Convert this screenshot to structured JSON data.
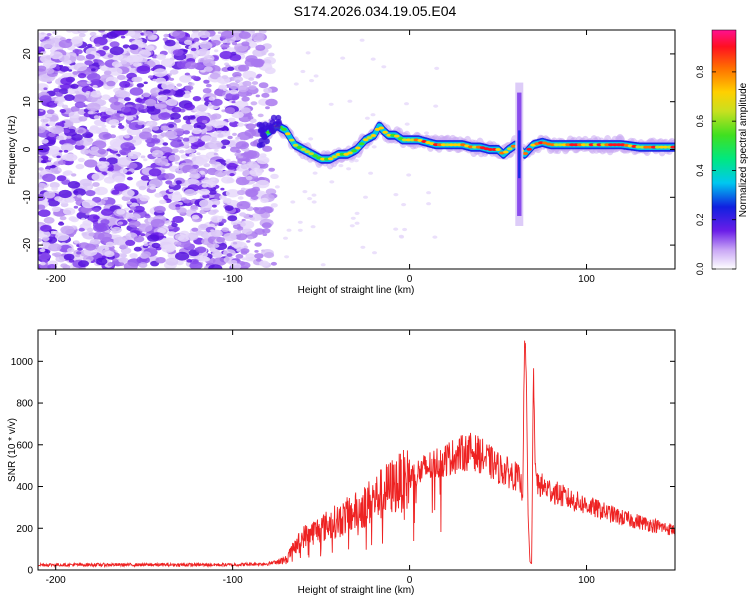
{
  "title": "S174.2026.034.19.05.E04",
  "colors": {
    "signal": "#ee2222",
    "ridge": "#cc1030",
    "noise_dark": "#6a1ee8",
    "noise_light": "#d9c6f7"
  },
  "chart_data": [
    {
      "type": "heatmap",
      "name": "spectrogram",
      "xlabel": "Height of straight line (km)",
      "ylabel": "Frequency (Hz)",
      "xlim": [
        -210,
        150
      ],
      "ylim": [
        -25,
        25
      ],
      "xticks": [
        -200,
        -100,
        0,
        100
      ],
      "yticks": [
        -20,
        -10,
        0,
        10,
        20
      ],
      "noise_region_x": [
        -210,
        -75
      ],
      "ridge": {
        "x": [
          -82,
          -75,
          -70,
          -65,
          -60,
          -55,
          -50,
          -45,
          -40,
          -35,
          -30,
          -25,
          -20,
          -17,
          -15,
          -12,
          -8,
          -4,
          0,
          5,
          10,
          15,
          20,
          25,
          30,
          35,
          40,
          45,
          50,
          53,
          56,
          60,
          65,
          70,
          75,
          80,
          85,
          90,
          95,
          100,
          110,
          120,
          130,
          140,
          150
        ],
        "y": [
          3,
          5,
          4,
          1,
          0,
          -1,
          -2,
          -2,
          -1,
          -1,
          0,
          2,
          3,
          5,
          4,
          3,
          3,
          2,
          2,
          2,
          1.5,
          1,
          1,
          1,
          1,
          0.5,
          0.5,
          0,
          0,
          -1,
          0,
          1,
          -1,
          1,
          1.5,
          1,
          1,
          1,
          1,
          1,
          1,
          1,
          0.5,
          0.5,
          0.5
        ]
      },
      "spike_x": 62,
      "spike_y_range": [
        -16,
        14
      ],
      "colorbar": {
        "label": "Normalized spectral amplitude",
        "ticks": [
          0.0,
          0.2,
          0.4,
          0.6,
          0.8
        ],
        "tick_labels": [
          "0.0",
          "0.2",
          "0.4",
          "0.6",
          "0.8"
        ],
        "range": [
          0,
          0.97
        ]
      }
    },
    {
      "type": "line",
      "name": "snr",
      "xlabel": "Height of straight line (km)",
      "ylabel": "SNR (10 * v/v)",
      "xlim": [
        -210,
        150
      ],
      "ylim": [
        0,
        1150
      ],
      "xticks": [
        -200,
        -100,
        0,
        100
      ],
      "yticks": [
        0,
        200,
        400,
        600,
        800,
        1000
      ],
      "envelope": {
        "x": [
          -210,
          -100,
          -80,
          -70,
          -65,
          -60,
          -50,
          -40,
          -30,
          -20,
          -10,
          0,
          10,
          20,
          30,
          35,
          40,
          50,
          60,
          62,
          64,
          65,
          66,
          67,
          68,
          69,
          70,
          71,
          72,
          75,
          80,
          90,
          100,
          110,
          120,
          130,
          140,
          150
        ],
        "y": [
          25,
          25,
          30,
          50,
          110,
          160,
          200,
          240,
          280,
          340,
          400,
          440,
          490,
          530,
          560,
          570,
          550,
          490,
          450,
          430,
          380,
          1150,
          900,
          250,
          40,
          30,
          1000,
          500,
          420,
          400,
          380,
          340,
          310,
          280,
          250,
          230,
          210,
          190
        ]
      }
    }
  ]
}
